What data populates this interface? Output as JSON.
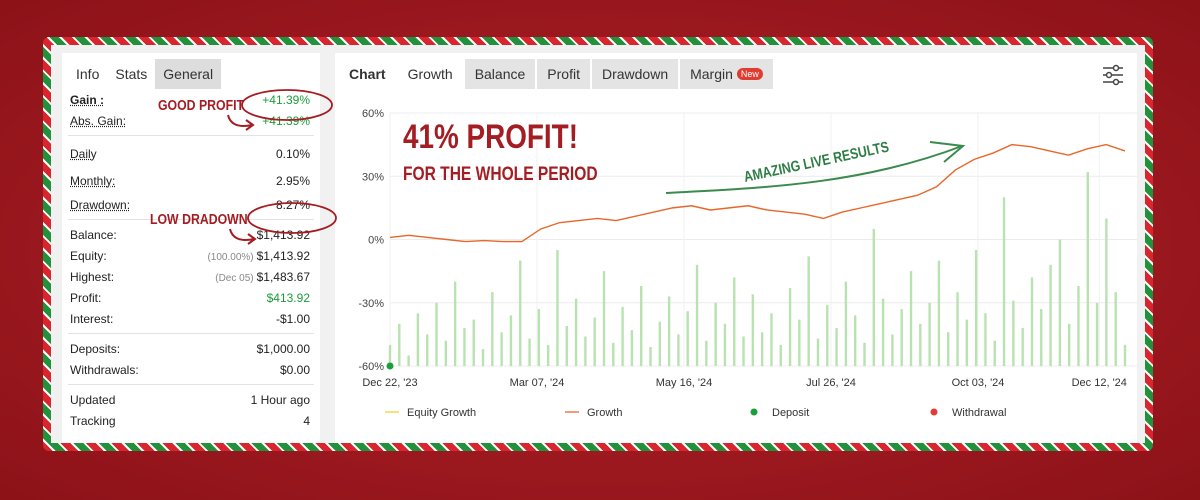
{
  "stats": {
    "tabs": [
      "Info",
      "Stats",
      "General"
    ],
    "rows": [
      {
        "label": "Gain :",
        "value": "+41.39%"
      },
      {
        "label": "Abs. Gain:",
        "value": "+41.39%"
      },
      {
        "label": "Daily",
        "value": "0.10%"
      },
      {
        "label": "Monthly:",
        "value": "2.95%"
      },
      {
        "label": "Drawdown:",
        "value": "8.27%"
      },
      {
        "label": "Balance:",
        "value": "$1,413.92"
      },
      {
        "label": "Equity:",
        "note": "(100.00%)",
        "value": "$1,413.92"
      },
      {
        "label": "Highest:",
        "note": "(Dec 05)",
        "value": "$1,483.67"
      },
      {
        "label": "Profit:",
        "value": "$413.92"
      },
      {
        "label": "Interest:",
        "value": "-$1.00"
      },
      {
        "label": "Deposits:",
        "value": "$1,000.00"
      },
      {
        "label": "Withdrawals:",
        "value": "$0.00"
      },
      {
        "label": "Updated",
        "value": "1 Hour ago"
      },
      {
        "label": "Tracking",
        "value": "4"
      }
    ]
  },
  "chart_tabs": {
    "items": [
      "Chart",
      "Growth",
      "Balance",
      "Profit",
      "Drawdown",
      "Margin"
    ],
    "badge": "New"
  },
  "annotations": {
    "headline": "41% PROFIT!",
    "subline": "FOR THE WHOLE PERIOD",
    "arrow_text": "AMAZING LIVE RESULTS",
    "gain_note": "GOOD PROFIT",
    "drawdown_note": "LOW DRADOWN"
  },
  "chart": {
    "type": "line",
    "ylim": [
      -60,
      60
    ],
    "yticks": [
      {
        "value": -60,
        "label": "-60%"
      },
      {
        "value": -30,
        "label": "-30%"
      },
      {
        "value": 0,
        "label": "0%"
      },
      {
        "value": 30,
        "label": "30%"
      },
      {
        "value": 60,
        "label": "60%"
      }
    ],
    "xticks": [
      "Dec 22, '23",
      "Mar 07, '24",
      "May 16, '24",
      "Jul 26, '24",
      "Oct 03, '24",
      "Dec 12, '24"
    ],
    "grid": true,
    "legend": [
      {
        "name": "Equity Growth",
        "color": "#f2d94e"
      },
      {
        "name": "Growth",
        "color": "#f07a4a"
      },
      {
        "name": "Deposit",
        "color": "#1a9e3a"
      },
      {
        "name": "Withdrawal",
        "color": "#e03c31"
      }
    ],
    "growth": {
      "color": "#e8662a",
      "values": [
        1,
        2,
        1,
        0,
        -1,
        -0.5,
        -1,
        -1,
        5,
        8,
        9,
        10,
        9,
        11,
        13,
        15,
        16,
        14,
        15,
        16,
        14,
        13,
        12,
        10,
        13,
        15,
        17,
        19,
        21,
        25,
        33,
        38,
        41,
        45,
        44,
        42,
        40,
        43,
        45,
        42
      ]
    },
    "bars": {
      "color": "#b9e2b1",
      "values": [
        -50,
        -40,
        -55,
        -35,
        -45,
        -30,
        -48,
        -20,
        -42,
        -38,
        -52,
        -25,
        -44,
        -36,
        -10,
        -47,
        -33,
        -50,
        -5,
        -41,
        -28,
        -46,
        -37,
        -15,
        -49,
        -32,
        -43,
        -22,
        -51,
        -39,
        -27,
        -45,
        -34,
        -12,
        -48,
        -30,
        -40,
        -18,
        -46,
        -26,
        -44,
        -35,
        -50,
        -23,
        -38,
        -8,
        -47,
        -31,
        -42,
        -20,
        -36,
        -49,
        5,
        -28,
        -45,
        -33,
        -15,
        -40,
        -30,
        -10,
        -44,
        -25,
        -38,
        -5,
        -35,
        -48,
        20,
        -29,
        -42,
        -18,
        -33,
        -12,
        0,
        -40,
        -22,
        32,
        -30,
        10,
        -25,
        -50
      ]
    }
  }
}
